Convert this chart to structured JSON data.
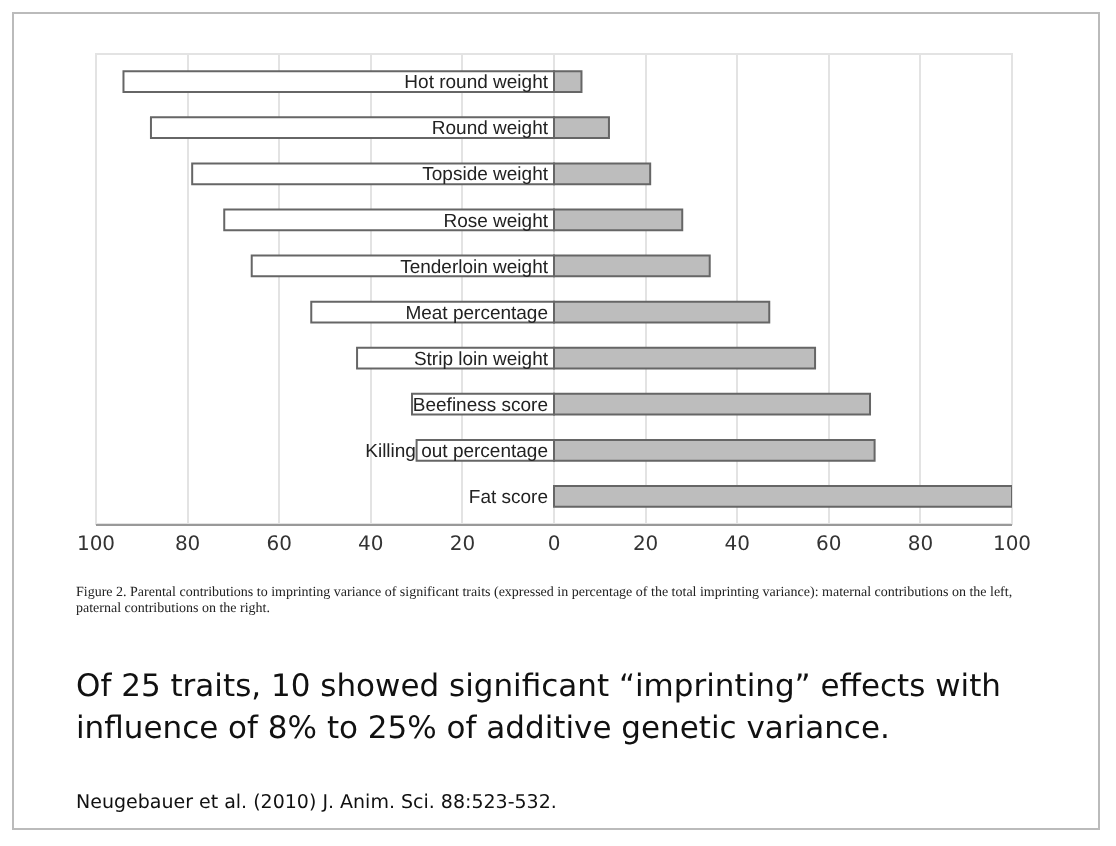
{
  "chart_data": {
    "type": "bar",
    "orientation": "horizontal",
    "stacked": true,
    "categories": [
      "Hot round weight",
      "Round weight",
      "Topside weight",
      "Rose weight",
      "Tenderloin weight",
      "Meat percentage",
      "Strip loin weight",
      "Beefiness score",
      "Killing out percentage",
      "Fat score"
    ],
    "series": [
      {
        "color": "#ffffff",
        "values": [
          -94,
          -88,
          -79,
          -72,
          -66,
          -53,
          -43,
          -31,
          -30,
          0
        ]
      },
      {
        "color": "#bdbdbd",
        "values": [
          6,
          12,
          21,
          28,
          34,
          47,
          57,
          69,
          70,
          100
        ]
      }
    ],
    "xlim": [
      -100,
      100
    ],
    "xticks": [
      {
        "value": -100,
        "label": "100"
      },
      {
        "value": -80,
        "label": "80"
      },
      {
        "value": -60,
        "label": "60"
      },
      {
        "value": -40,
        "label": "40"
      },
      {
        "value": -20,
        "label": "20"
      },
      0,
      20,
      40,
      60,
      80,
      100
    ],
    "grid": "x",
    "annotations": [
      "Figure 2. Parental contributions to imprinting variance of significant traits (expressed in percentage of the total imprinting variance): maternal contributions on the left, paternal contributions on the right.",
      "Of 25 traits, 10 showed significant “imprinting” effects with influence of 8% to 25% of additive genetic variance.",
      "Neugebauer et al. (2010) J. Anim. Sci. 88:523-532."
    ]
  }
}
